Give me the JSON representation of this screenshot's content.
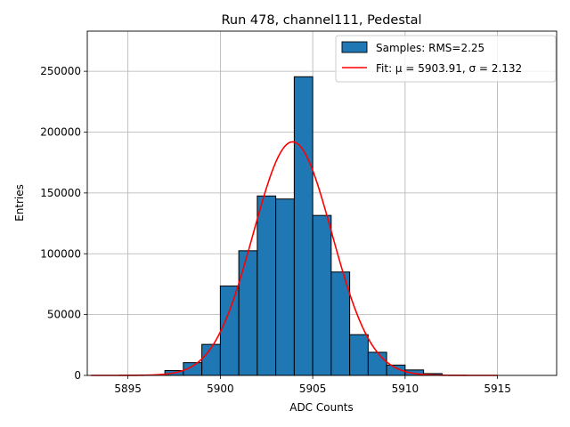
{
  "chart_data": {
    "type": "bar",
    "title": "Run 478, channel111, Pedestal",
    "xlabel": "ADC Counts",
    "ylabel": "Entries",
    "xlim": [
      5892.8,
      5918.2
    ],
    "ylim": [
      0,
      283000
    ],
    "xticks": [
      5895,
      5900,
      5905,
      5910,
      5915
    ],
    "yticks": [
      0,
      50000,
      100000,
      150000,
      200000,
      250000
    ],
    "grid": true,
    "legend_position": "top-right",
    "bin_width": 1,
    "bins": [
      {
        "x": 5897.5,
        "value": 4000
      },
      {
        "x": 5898.5,
        "value": 10500
      },
      {
        "x": 5899.5,
        "value": 25500
      },
      {
        "x": 5900.5,
        "value": 73500
      },
      {
        "x": 5901.5,
        "value": 102500
      },
      {
        "x": 5902.5,
        "value": 147500
      },
      {
        "x": 5903.5,
        "value": 145000
      },
      {
        "x": 5904.5,
        "value": 245500
      },
      {
        "x": 5905.5,
        "value": 131500
      },
      {
        "x": 5906.5,
        "value": 85000
      },
      {
        "x": 5907.5,
        "value": 33500
      },
      {
        "x": 5908.5,
        "value": 19000
      },
      {
        "x": 5909.5,
        "value": 8500
      },
      {
        "x": 5910.5,
        "value": 4500
      },
      {
        "x": 5911.5,
        "value": 1500
      }
    ],
    "fit": {
      "mu": 5903.91,
      "sigma": 2.132,
      "peak": 192000,
      "x_range": [
        5893,
        5915
      ]
    },
    "series": [
      {
        "name": "Samples: RMS=2.25",
        "color": "#1f77b4"
      },
      {
        "name": "Fit: μ = 5903.91, σ = 2.132",
        "color": "#ff0000"
      }
    ]
  }
}
